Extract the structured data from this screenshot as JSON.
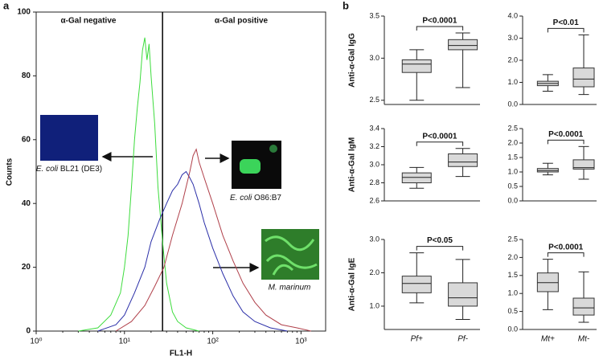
{
  "panel_labels": [
    "a",
    "b"
  ],
  "chart_data": [
    {
      "type": "histogram-lines",
      "xlabel": "FL1-H",
      "ylabel": "Counts",
      "log_x": true,
      "xlim": [
        1,
        1900
      ],
      "xticks": [
        {
          "value": 1,
          "label": "10⁰"
        },
        {
          "value": 10,
          "label": "10¹"
        },
        {
          "value": 100,
          "label": "10²"
        },
        {
          "value": 1000,
          "label": "10³"
        }
      ],
      "ylim": [
        0,
        100
      ],
      "yticks": [
        0,
        20,
        40,
        60,
        80,
        100
      ],
      "divider_x": 27,
      "regions": [
        "α-Gal negative",
        "α-Gal positive"
      ],
      "insets": [
        {
          "italic": "E. coli",
          "text": "BL21 (DE3)",
          "color": "#10207a"
        },
        {
          "italic": "E. coli",
          "text": "O86:B7",
          "color": "#0a0a0a"
        },
        {
          "italic": "M. marinum",
          "color": "#2e7d2a"
        }
      ],
      "series": [
        {
          "color": "#3ddc3d",
          "x": [
            3,
            5,
            7,
            9,
            10,
            11,
            12,
            13,
            14,
            15,
            16,
            17,
            18,
            19,
            20,
            22,
            24,
            27,
            30,
            35,
            40,
            50,
            70
          ],
          "values": [
            0,
            1,
            5,
            12,
            20,
            30,
            45,
            60,
            70,
            78,
            88,
            92,
            85,
            90,
            80,
            65,
            45,
            28,
            15,
            6,
            3,
            1,
            0
          ]
        },
        {
          "color": "#2b2fa8",
          "x": [
            5,
            8,
            10,
            13,
            17,
            20,
            25,
            30,
            35,
            40,
            45,
            50,
            55,
            60,
            70,
            80,
            100,
            130,
            170,
            220,
            300,
            450,
            700
          ],
          "values": [
            0,
            2,
            5,
            12,
            20,
            28,
            35,
            40,
            44,
            46,
            49,
            50,
            48,
            46,
            40,
            34,
            26,
            18,
            11,
            6,
            3,
            1,
            0
          ]
        },
        {
          "color": "#b0404a",
          "x": [
            8,
            12,
            17,
            22,
            28,
            35,
            45,
            55,
            60,
            65,
            70,
            80,
            100,
            130,
            170,
            220,
            300,
            400,
            600,
            900,
            1300
          ],
          "values": [
            0,
            3,
            8,
            14,
            20,
            30,
            40,
            50,
            55,
            57,
            53,
            48,
            40,
            30,
            22,
            15,
            9,
            5,
            2,
            1,
            0
          ]
        }
      ]
    },
    {
      "type": "box",
      "ylabel": "Anti-α-Gal IgG",
      "ylim": [
        2.45,
        3.5
      ],
      "yticks": [
        {
          "value": 2.5,
          "label": "2.5"
        },
        {
          "value": 3,
          "label": "3.0"
        },
        {
          "value": 3.5,
          "label": "3.5"
        }
      ],
      "categories": [
        null,
        null
      ],
      "boxes": [
        {
          "min": 2.5,
          "q1": 2.83,
          "median": 2.93,
          "q3": 2.98,
          "max": 3.1
        },
        {
          "min": 2.65,
          "q1": 3.1,
          "median": 3.15,
          "q3": 3.22,
          "max": 3.3
        }
      ],
      "p_label": "P<0.0001"
    },
    {
      "type": "box",
      "ylim": [
        0,
        4
      ],
      "yticks": [
        {
          "value": 0,
          "label": "0.0"
        },
        {
          "value": 1,
          "label": "1.0"
        },
        {
          "value": 2,
          "label": "2.0"
        },
        {
          "value": 3,
          "label": "3.0"
        },
        {
          "value": 4,
          "label": "4.0"
        }
      ],
      "categories": [
        null,
        null
      ],
      "boxes": [
        {
          "min": 0.6,
          "q1": 0.85,
          "median": 0.95,
          "q3": 1.05,
          "max": 1.35
        },
        {
          "min": 0.45,
          "q1": 0.8,
          "median": 1.15,
          "q3": 1.65,
          "max": 3.15
        }
      ],
      "p_label": "P<0.01"
    },
    {
      "type": "box",
      "ylabel": "Anti-α-Gal IgM",
      "ylim": [
        2.6,
        3.4
      ],
      "yticks": [
        {
          "value": 2.6,
          "label": "2.6"
        },
        {
          "value": 2.8,
          "label": "2.8"
        },
        {
          "value": 3,
          "label": "3.0"
        },
        {
          "value": 3.2,
          "label": "3.2"
        },
        {
          "value": 3.4,
          "label": "3.4"
        }
      ],
      "categories": [
        null,
        null
      ],
      "boxes": [
        {
          "min": 2.74,
          "q1": 2.8,
          "median": 2.86,
          "q3": 2.91,
          "max": 2.97
        },
        {
          "min": 2.87,
          "q1": 2.98,
          "median": 3.03,
          "q3": 3.12,
          "max": 3.18
        }
      ],
      "p_label": "P<0.0001"
    },
    {
      "type": "box",
      "ylim": [
        0,
        2.5
      ],
      "yticks": [
        {
          "value": 0,
          "label": "0.0"
        },
        {
          "value": 0.5,
          "label": "0.5"
        },
        {
          "value": 1,
          "label": "1.0"
        },
        {
          "value": 1.5,
          "label": "1.5"
        },
        {
          "value": 2,
          "label": "2.0"
        },
        {
          "value": 2.5,
          "label": "2.5"
        }
      ],
      "categories": [
        null,
        null
      ],
      "boxes": [
        {
          "min": 0.9,
          "q1": 1.0,
          "median": 1.05,
          "q3": 1.12,
          "max": 1.3
        },
        {
          "min": 0.75,
          "q1": 1.1,
          "median": 1.15,
          "q3": 1.42,
          "max": 1.88
        }
      ],
      "p_label": "P<0.0001"
    },
    {
      "type": "box",
      "ylabel": "Anti-α-Gal IgE",
      "ylim": [
        0.3,
        3
      ],
      "yticks": [
        {
          "value": 1,
          "label": "1.0"
        },
        {
          "value": 2,
          "label": "2.0"
        },
        {
          "value": 3,
          "label": "3.0"
        }
      ],
      "categories": [
        "Pf+",
        "Pf-"
      ],
      "boxes": [
        {
          "min": 1.1,
          "q1": 1.4,
          "median": 1.68,
          "q3": 1.9,
          "max": 2.6
        },
        {
          "min": 0.6,
          "q1": 1.0,
          "median": 1.25,
          "q3": 1.7,
          "max": 2.4
        }
      ],
      "p_label": "P<0.05"
    },
    {
      "type": "box",
      "ylim": [
        0,
        2.5
      ],
      "yticks": [
        {
          "value": 0,
          "label": "0.0"
        },
        {
          "value": 0.5,
          "label": "0.5"
        },
        {
          "value": 1,
          "label": "1.0"
        },
        {
          "value": 1.5,
          "label": "1.5"
        },
        {
          "value": 2,
          "label": "2.0"
        },
        {
          "value": 2.5,
          "label": "2.5"
        }
      ],
      "categories": [
        "Mt+",
        "Mt-"
      ],
      "boxes": [
        {
          "min": 0.55,
          "q1": 1.05,
          "median": 1.3,
          "q3": 1.57,
          "max": 1.95
        },
        {
          "min": 0.2,
          "q1": 0.4,
          "median": 0.6,
          "q3": 0.87,
          "max": 1.6
        }
      ],
      "p_label": "P<0.0001"
    }
  ]
}
